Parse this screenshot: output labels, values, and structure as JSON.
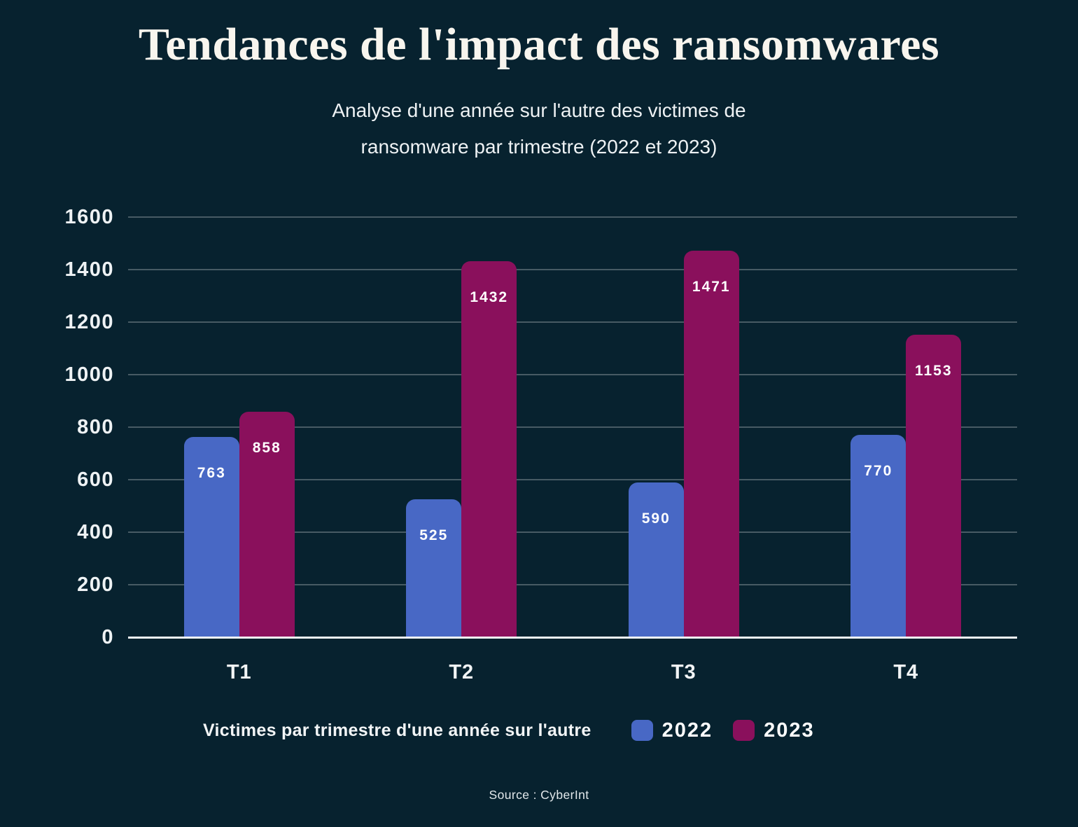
{
  "page": {
    "title": "Tendances de l'impact des ransomwares",
    "subtitle_line1": "Analyse d'une année sur l'autre des victimes de",
    "subtitle_line2": "ransomware par trimestre (2022 et 2023)",
    "source": "Source : CyberInt"
  },
  "legend": {
    "title": "Victimes par trimestre d'une année sur l'autre",
    "items": [
      {
        "label": "2022",
        "color": "#4868c5"
      },
      {
        "label": "2023",
        "color": "#8a105c"
      }
    ]
  },
  "colors": {
    "background": "#07222f",
    "series_2022": "#4868c5",
    "series_2023": "#8a105c",
    "gridline": "rgba(255,255,255,0.26)",
    "axis_line": "#f2f6f7",
    "text": "#f2f4f5"
  },
  "chart_data": {
    "type": "bar",
    "title": "Tendances de l'impact des ransomwares",
    "subtitle": "Analyse d'une année sur l'autre des victimes de ransomware par trimestre (2022 et 2023)",
    "categories": [
      "T1",
      "T2",
      "T3",
      "T4"
    ],
    "series": [
      {
        "name": "2022",
        "color": "#4868c5",
        "values": [
          763,
          525,
          590,
          770
        ]
      },
      {
        "name": "2023",
        "color": "#8a105c",
        "values": [
          858,
          1432,
          1471,
          1153
        ]
      }
    ],
    "xlabel": "",
    "ylabel": "",
    "ylim": [
      0,
      1600
    ],
    "ytick_step": 200,
    "yticks": [
      0,
      200,
      400,
      600,
      800,
      1000,
      1200,
      1400,
      1600
    ],
    "grid": true,
    "legend_position": "bottom",
    "legend_title": "Victimes par trimestre d'une année sur l'autre",
    "source": "Source : CyberInt"
  }
}
